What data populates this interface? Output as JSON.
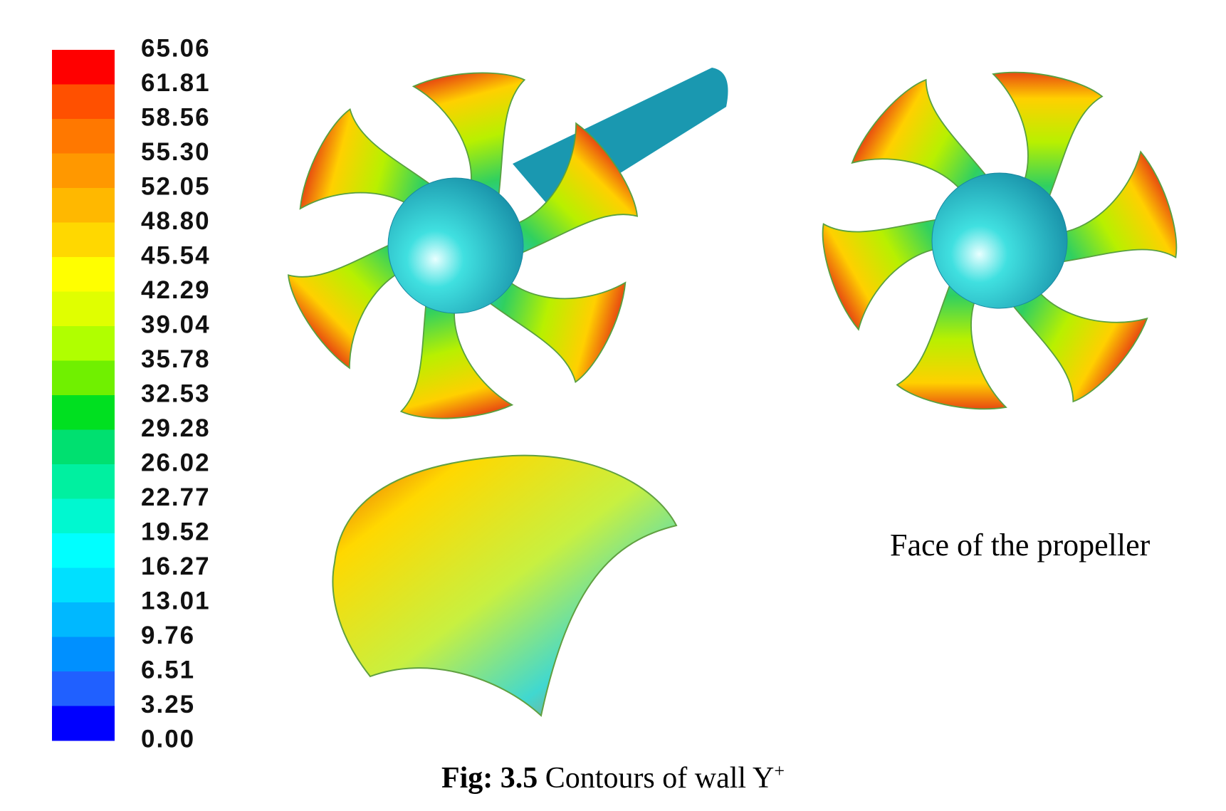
{
  "legend": {
    "labels": [
      "65.06",
      "61.81",
      "58.56",
      "55.30",
      "52.05",
      "48.80",
      "45.54",
      "42.29",
      "39.04",
      "35.78",
      "32.53",
      "29.28",
      "26.02",
      "22.77",
      "19.52",
      "16.27",
      "13.01",
      "9.76",
      "6.51",
      "3.25",
      "0.00"
    ],
    "colors": [
      "#ff0000",
      "#ff5000",
      "#ff7800",
      "#ff9800",
      "#ffb800",
      "#ffd800",
      "#ffff00",
      "#e0ff00",
      "#b0ff00",
      "#70f000",
      "#00e020",
      "#00e070",
      "#00f0a0",
      "#00f8d0",
      "#00ffff",
      "#00e0ff",
      "#00b8ff",
      "#0090ff",
      "#2060ff",
      "#0000ff"
    ]
  },
  "annotation": "Face of the propeller",
  "caption": {
    "label": "Fig: 3.5",
    "text": "Contours of wall Y",
    "superscript": "+"
  }
}
